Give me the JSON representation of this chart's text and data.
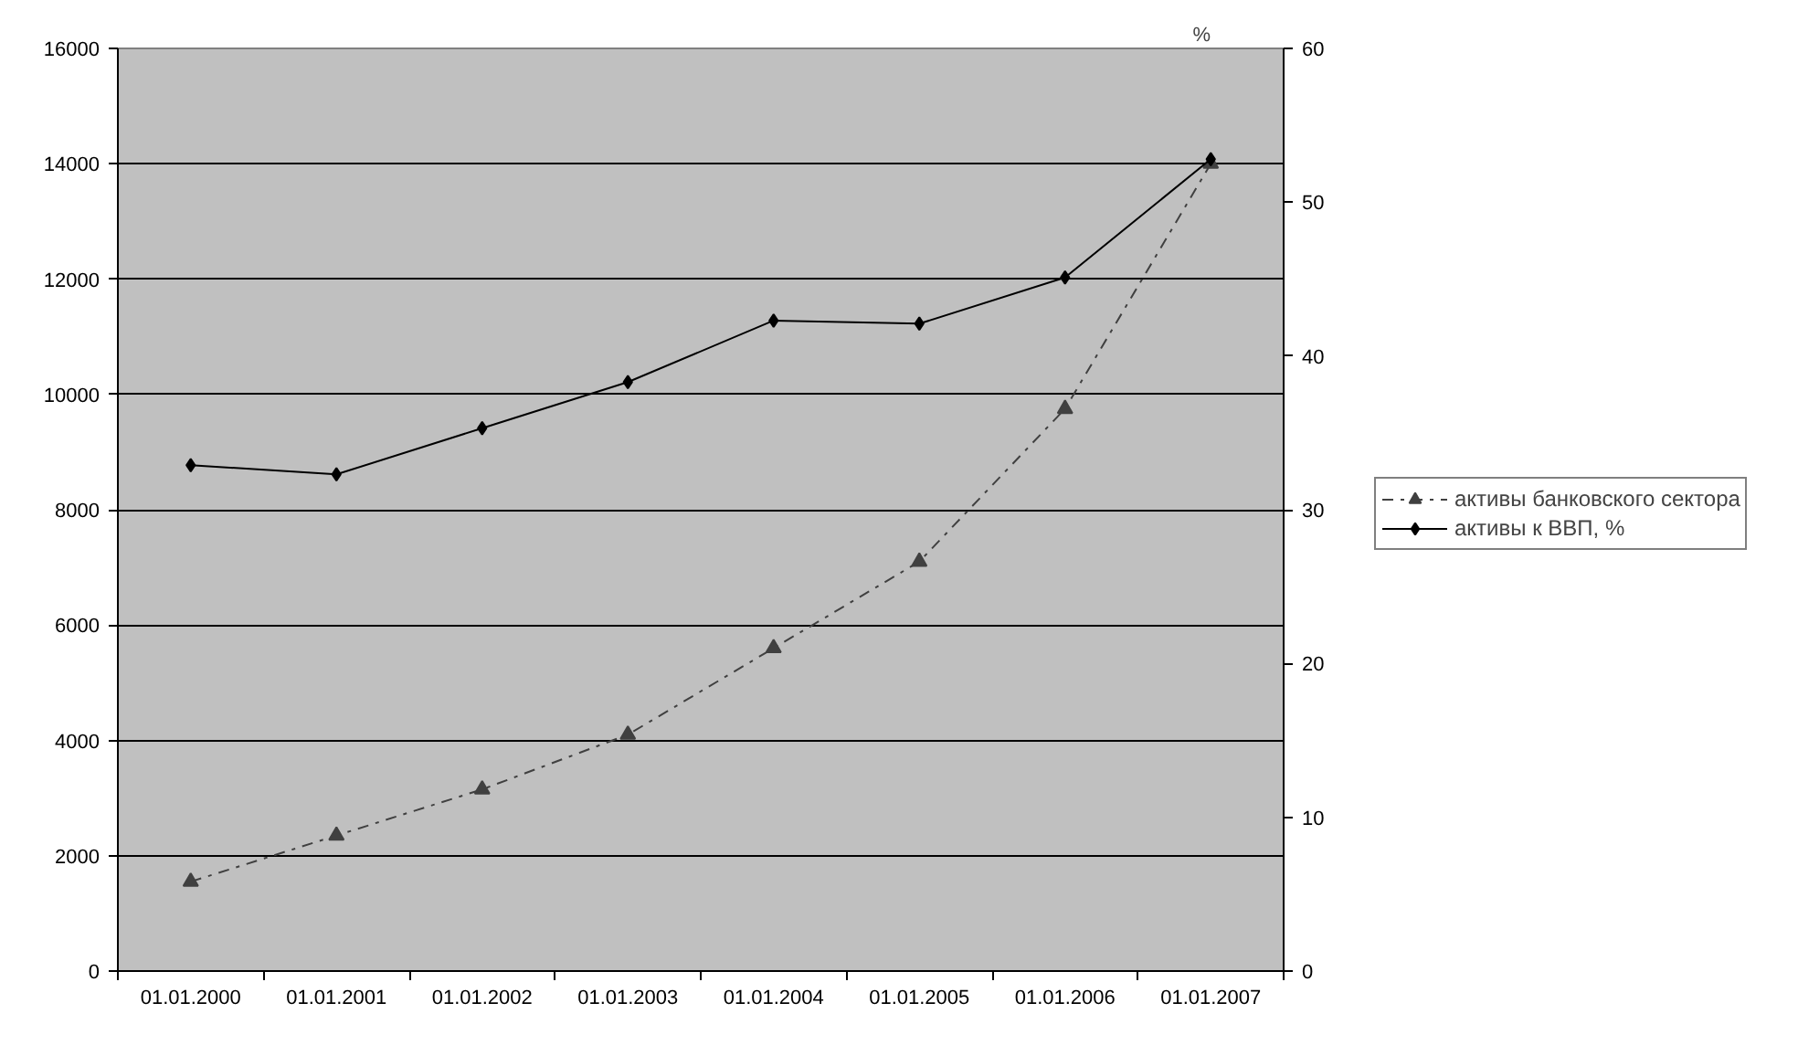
{
  "chart_data": {
    "type": "line",
    "categories": [
      "01.01.2000",
      "01.01.2001",
      "01.01.2002",
      "01.01.2003",
      "01.01.2004",
      "01.01.2005",
      "01.01.2006",
      "01.01.2007"
    ],
    "series": [
      {
        "name": "активы банковского сектора",
        "color": "#404040",
        "values": [
          1550,
          2350,
          3150,
          4100,
          5600,
          7100,
          9750,
          14000
        ],
        "marker": "triangle",
        "line_style": "dashdot"
      },
      {
        "name": "активы к ВВП, %",
        "color": "#000000",
        "values": [
          32.9,
          32.3,
          35.3,
          38.3,
          42.3,
          42.1,
          45.1,
          52.8
        ],
        "marker": "diamond",
        "line_style": "solid",
        "axis": "y2"
      }
    ],
    "ylim": [
      0,
      16000
    ],
    "yticks": [
      0,
      2000,
      4000,
      6000,
      8000,
      10000,
      12000,
      14000,
      16000
    ],
    "y2lim": [
      0,
      60
    ],
    "y2ticks": [
      0,
      10,
      20,
      30,
      40,
      50,
      60
    ],
    "y2label": "%",
    "grid": "y",
    "legend": "right"
  }
}
